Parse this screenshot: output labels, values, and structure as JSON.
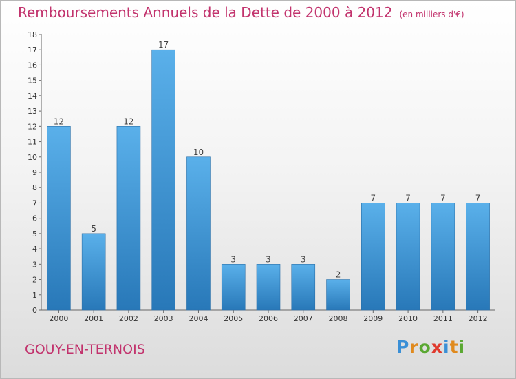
{
  "header": {
    "title": "Remboursements Annuels de la Dette de 2000 à 2012",
    "unit": "(en milliers d'€)"
  },
  "footer": {
    "city": "GOUY-EN-TERNOIS",
    "logo_letters": [
      "P",
      "r",
      "o",
      "x",
      "i",
      "t",
      "i"
    ]
  },
  "chart_data": {
    "type": "bar",
    "title": "Remboursements Annuels de la Dette de 2000 à 2012",
    "subtitle": "(en milliers d'€)",
    "categories": [
      "2000",
      "2001",
      "2002",
      "2003",
      "2004",
      "2005",
      "2006",
      "2007",
      "2008",
      "2009",
      "2010",
      "2011",
      "2012"
    ],
    "values": [
      12,
      5,
      12,
      17,
      10,
      3,
      3,
      3,
      2,
      7,
      7,
      7,
      7
    ],
    "ylim": [
      0,
      18
    ],
    "yticks": [
      0,
      1,
      2,
      3,
      4,
      5,
      6,
      7,
      8,
      9,
      10,
      11,
      12,
      13,
      14,
      15,
      16,
      17,
      18
    ],
    "xlabel": "",
    "ylabel": "",
    "grid": false,
    "legend": "none",
    "bar_color": "#3d8fd1"
  }
}
